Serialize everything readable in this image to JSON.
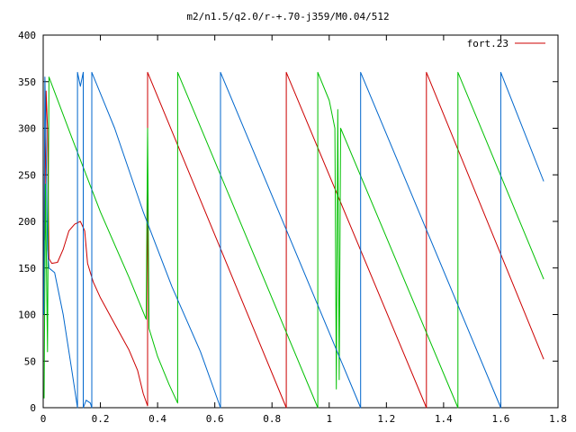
{
  "chart_data": {
    "type": "line",
    "title": "m2/n1.5/q2.0/r-+.70-j359/M0.04/512",
    "xlabel": "",
    "ylabel": "",
    "xlim": [
      0,
      1.8
    ],
    "ylim": [
      0,
      400
    ],
    "xticks": [
      "0",
      "0.2",
      "0.4",
      "0.6",
      "0.8",
      "1",
      "1.2",
      "1.4",
      "1.6",
      "1.8"
    ],
    "yticks": [
      "0",
      "50",
      "100",
      "150",
      "200",
      "250",
      "300",
      "350",
      "400"
    ],
    "grid": false,
    "legend": {
      "position": "top-right",
      "entries": [
        "fort.23"
      ]
    },
    "series": [
      {
        "name": "fort.23",
        "color": "#cc0000",
        "points": [
          [
            0.005,
            180
          ],
          [
            0.01,
            340
          ],
          [
            0.015,
            300
          ],
          [
            0.02,
            160
          ],
          [
            0.03,
            155
          ],
          [
            0.05,
            156
          ],
          [
            0.07,
            170
          ],
          [
            0.09,
            190
          ],
          [
            0.11,
            197
          ],
          [
            0.13,
            200
          ],
          [
            0.145,
            190
          ],
          [
            0.155,
            155
          ],
          [
            0.175,
            135
          ],
          [
            0.2,
            118
          ],
          [
            0.25,
            90
          ],
          [
            0.3,
            62
          ],
          [
            0.33,
            40
          ],
          [
            0.35,
            15
          ],
          [
            0.365,
            2
          ],
          [
            0.365,
            360
          ],
          [
            0.85,
            0
          ],
          [
            0.85,
            360
          ],
          [
            1.34,
            0
          ],
          [
            1.34,
            360
          ],
          [
            1.75,
            52
          ]
        ]
      },
      {
        "name": "",
        "color": "#00c000",
        "points": [
          [
            0.003,
            10
          ],
          [
            0.008,
            240
          ],
          [
            0.015,
            60
          ],
          [
            0.02,
            355
          ],
          [
            0.1,
            290
          ],
          [
            0.2,
            210
          ],
          [
            0.3,
            140
          ],
          [
            0.36,
            95
          ],
          [
            0.365,
            300
          ],
          [
            0.37,
            85
          ],
          [
            0.4,
            55
          ],
          [
            0.44,
            25
          ],
          [
            0.47,
            5
          ],
          [
            0.47,
            360
          ],
          [
            0.96,
            0
          ],
          [
            0.96,
            360
          ],
          [
            1.0,
            330
          ],
          [
            1.02,
            300
          ],
          [
            1.025,
            20
          ],
          [
            1.03,
            320
          ],
          [
            1.035,
            30
          ],
          [
            1.04,
            300
          ],
          [
            1.45,
            0
          ],
          [
            1.45,
            360
          ],
          [
            1.75,
            138
          ]
        ]
      },
      {
        "name": "",
        "color": "#0066cc",
        "points": [
          [
            0.002,
            100
          ],
          [
            0.006,
            355
          ],
          [
            0.01,
            280
          ],
          [
            0.015,
            170
          ],
          [
            0.02,
            150
          ],
          [
            0.04,
            145
          ],
          [
            0.07,
            100
          ],
          [
            0.1,
            40
          ],
          [
            0.12,
            0
          ],
          [
            0.12,
            360
          ],
          [
            0.13,
            345
          ],
          [
            0.14,
            360
          ],
          [
            0.14,
            0
          ],
          [
            0.15,
            8
          ],
          [
            0.165,
            5
          ],
          [
            0.17,
            0
          ],
          [
            0.17,
            360
          ],
          [
            0.25,
            300
          ],
          [
            0.35,
            210
          ],
          [
            0.45,
            130
          ],
          [
            0.55,
            60
          ],
          [
            0.62,
            0
          ],
          [
            0.62,
            360
          ],
          [
            1.11,
            0
          ],
          [
            1.11,
            360
          ],
          [
            1.6,
            0
          ],
          [
            1.6,
            360
          ],
          [
            1.75,
            243
          ]
        ]
      }
    ]
  }
}
